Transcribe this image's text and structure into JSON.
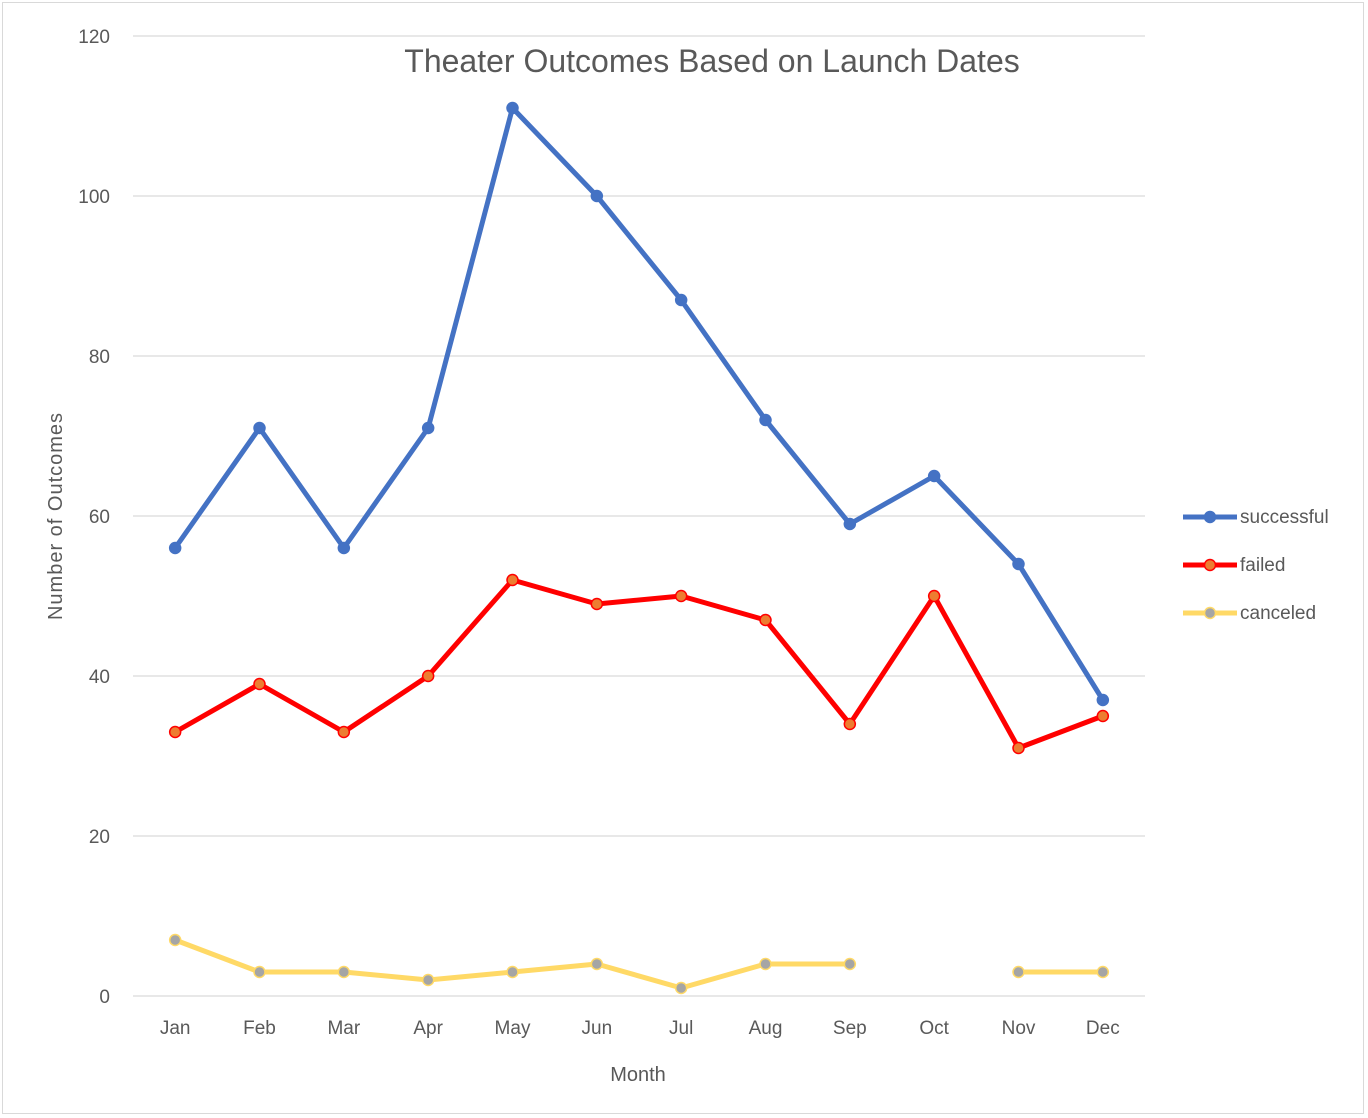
{
  "chart_data": {
    "type": "line",
    "title": "Theater Outcomes Based on Launch Dates",
    "xlabel": "Month",
    "ylabel": "Number of Outcomes",
    "categories": [
      "Jan",
      "Feb",
      "Mar",
      "Apr",
      "May",
      "Jun",
      "Jul",
      "Aug",
      "Sep",
      "Oct",
      "Nov",
      "Dec"
    ],
    "ylim": [
      0,
      120
    ],
    "yticks": [
      0,
      20,
      40,
      60,
      80,
      100,
      120
    ],
    "grid": true,
    "legend_position": "right",
    "series": [
      {
        "name": "successful",
        "color": "#4472c4",
        "marker_fill": "#4472c4",
        "values": [
          56,
          71,
          56,
          71,
          111,
          100,
          87,
          72,
          59,
          65,
          54,
          37
        ]
      },
      {
        "name": "failed",
        "color": "#ff0000",
        "marker_fill": "#ed7d31",
        "values": [
          33,
          39,
          33,
          40,
          52,
          49,
          50,
          47,
          34,
          50,
          31,
          35
        ]
      },
      {
        "name": "canceled",
        "color": "#ffd966",
        "marker_fill": "#a5a5a5",
        "values": [
          7,
          3,
          3,
          2,
          3,
          4,
          1,
          4,
          4,
          null,
          3,
          3
        ]
      }
    ]
  }
}
